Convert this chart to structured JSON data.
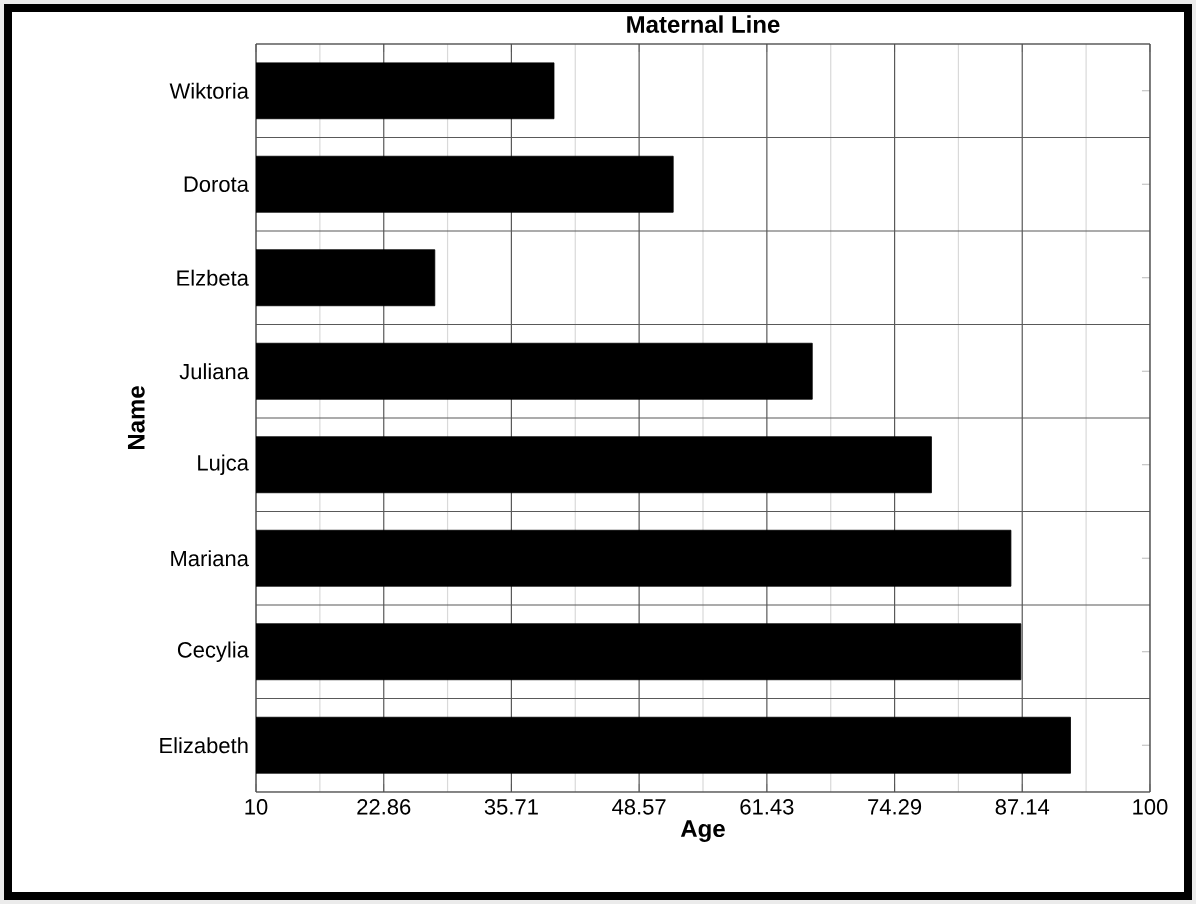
{
  "chart_data": {
    "type": "bar",
    "orientation": "horizontal",
    "title": "Maternal Line",
    "xlabel": "Age",
    "ylabel": "Name",
    "categories": [
      "Wiktoria",
      "Dorota",
      "Elzbeta",
      "Juliana",
      "Lujca",
      "Mariana",
      "Cecylia",
      "Elizabeth"
    ],
    "values": [
      40,
      52,
      28,
      66,
      78,
      86,
      87,
      92
    ],
    "color": "#000000",
    "xlim": [
      10,
      100
    ],
    "xticks": [
      10,
      22.86,
      35.71,
      48.57,
      61.43,
      74.29,
      87.14,
      100
    ],
    "grid": true
  }
}
